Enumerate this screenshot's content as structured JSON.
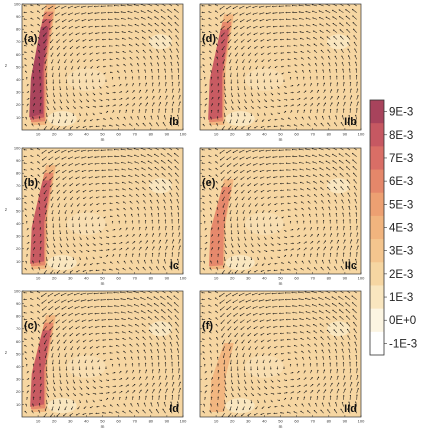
{
  "chart_data": {
    "type": "heatmap",
    "panels": [
      {
        "label": "(a)",
        "tag": "Ib",
        "show_xticks": true,
        "show_yticks": true
      },
      {
        "label": "(d)",
        "tag": "IIb",
        "show_xticks": true,
        "show_yticks": false
      },
      {
        "label": "(b)",
        "tag": "Ic",
        "show_xticks": true,
        "show_yticks": true
      },
      {
        "label": "(e)",
        "tag": "IIc",
        "show_xticks": true,
        "show_yticks": false
      },
      {
        "label": "(c)",
        "tag": "Id",
        "show_xticks": true,
        "show_yticks": true
      },
      {
        "label": "(f)",
        "tag": "IId",
        "show_xticks": true,
        "show_yticks": false
      }
    ],
    "xlabel": "m",
    "ylabel": "z",
    "xlim": [
      0,
      100
    ],
    "ylim": [
      0,
      100
    ],
    "xticks": [
      "10",
      "20",
      "30",
      "40",
      "50",
      "60",
      "70",
      "80",
      "90",
      "100"
    ],
    "yticks": [
      "10",
      "20",
      "30",
      "40",
      "50",
      "60",
      "70",
      "80",
      "90",
      "100"
    ],
    "colorbar": {
      "labels": [
        "9E-3",
        "8E-3",
        "7E-3",
        "6E-3",
        "5E-3",
        "4E-3",
        "3E-3",
        "2E-3",
        "1E-3",
        "0E+0",
        "-1E-3"
      ],
      "values": [
        0.009,
        0.008,
        0.007,
        0.006,
        0.005,
        0.004,
        0.003,
        0.002,
        0.001,
        0.0,
        -0.001
      ],
      "colors": [
        "#a8435c",
        "#c65862",
        "#d96e66",
        "#e5876a",
        "#eda072",
        "#f1b47e",
        "#f4c58e",
        "#f6d6a2",
        "#f9e6bf",
        "#fcf5e2",
        "#ffffff"
      ]
    },
    "background_level": 0.002,
    "grid": false
  }
}
